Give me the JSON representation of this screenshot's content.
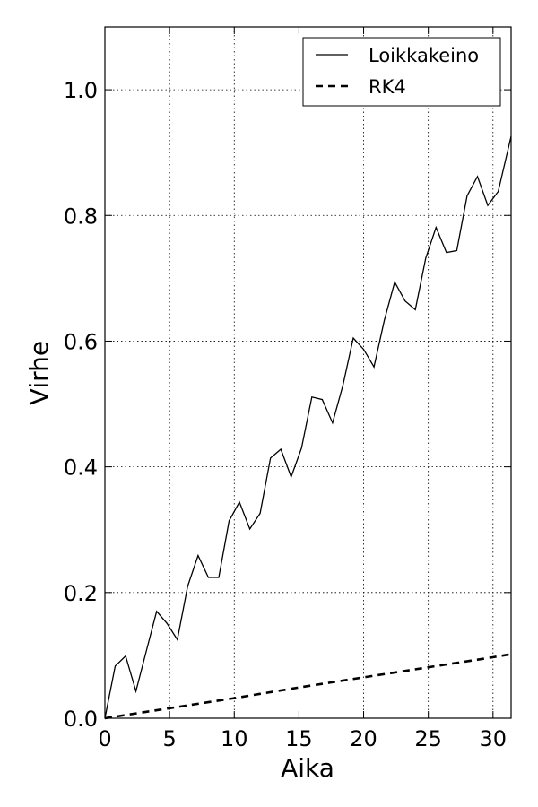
{
  "chart_data": {
    "type": "line",
    "title": "",
    "xlabel": "Aika",
    "ylabel": "Virhe",
    "xlim": [
      0,
      31.4
    ],
    "ylim": [
      0,
      1.1
    ],
    "xticks": [
      0,
      5,
      10,
      15,
      20,
      25,
      30
    ],
    "xtick_labels": [
      "0",
      "5",
      "10",
      "15",
      "20",
      "25",
      "30"
    ],
    "yticks": [
      0,
      0.2,
      0.4,
      0.6,
      0.8,
      1.0
    ],
    "ytick_labels": [
      "0.0",
      "0.2",
      "0.4",
      "0.6",
      "0.8",
      "1.0"
    ],
    "grid": true,
    "legend_position": "top-right",
    "series": [
      {
        "name": "Loikkakeino",
        "style": "solid",
        "color": "#000000",
        "x": [
          0,
          0.8,
          1.6,
          2.4,
          3.2,
          4.0,
          4.8,
          5.6,
          6.4,
          7.2,
          8.0,
          8.8,
          9.6,
          10.4,
          11.2,
          12.0,
          12.8,
          13.6,
          14.4,
          15.2,
          16.0,
          16.8,
          17.6,
          18.4,
          19.2,
          20.0,
          20.8,
          21.6,
          22.4,
          23.2,
          24.0,
          24.8,
          25.6,
          26.4,
          27.2,
          28.0,
          28.8,
          29.6,
          30.4,
          31.4
        ],
        "y": [
          0.0,
          0.083,
          0.099,
          0.043,
          0.107,
          0.17,
          0.151,
          0.125,
          0.21,
          0.259,
          0.224,
          0.224,
          0.314,
          0.344,
          0.301,
          0.326,
          0.414,
          0.428,
          0.384,
          0.43,
          0.511,
          0.507,
          0.47,
          0.53,
          0.605,
          0.587,
          0.559,
          0.633,
          0.694,
          0.664,
          0.65,
          0.732,
          0.781,
          0.741,
          0.744,
          0.831,
          0.862,
          0.816,
          0.838,
          0.926
        ]
      },
      {
        "name": "RK4",
        "style": "dashed",
        "color": "#000000",
        "x": [
          0,
          5,
          10,
          15,
          20,
          25,
          30,
          31.4
        ],
        "y": [
          0.0,
          0.016,
          0.032,
          0.049,
          0.065,
          0.081,
          0.097,
          0.102
        ]
      }
    ]
  }
}
